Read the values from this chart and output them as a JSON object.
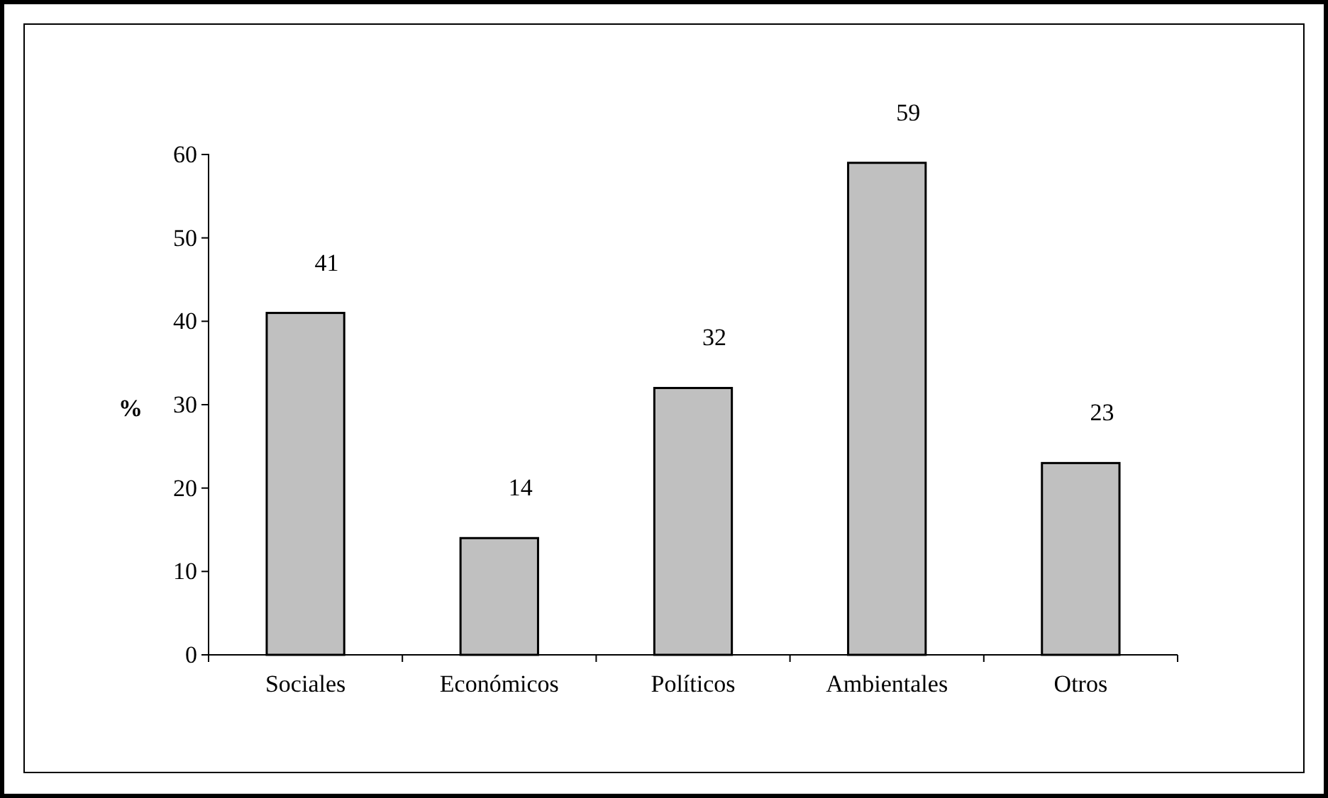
{
  "chart_data": {
    "type": "bar",
    "ylabel": "%",
    "categories": [
      "Sociales",
      "Económicos",
      "Políticos",
      "Ambientales",
      "Otros"
    ],
    "values": [
      41,
      14,
      32,
      59,
      23
    ],
    "color": "#c0c0c0",
    "ylim": [
      0,
      60
    ],
    "yticks": [
      0,
      10,
      20,
      30,
      40,
      50,
      60
    ],
    "data_labels": true
  }
}
